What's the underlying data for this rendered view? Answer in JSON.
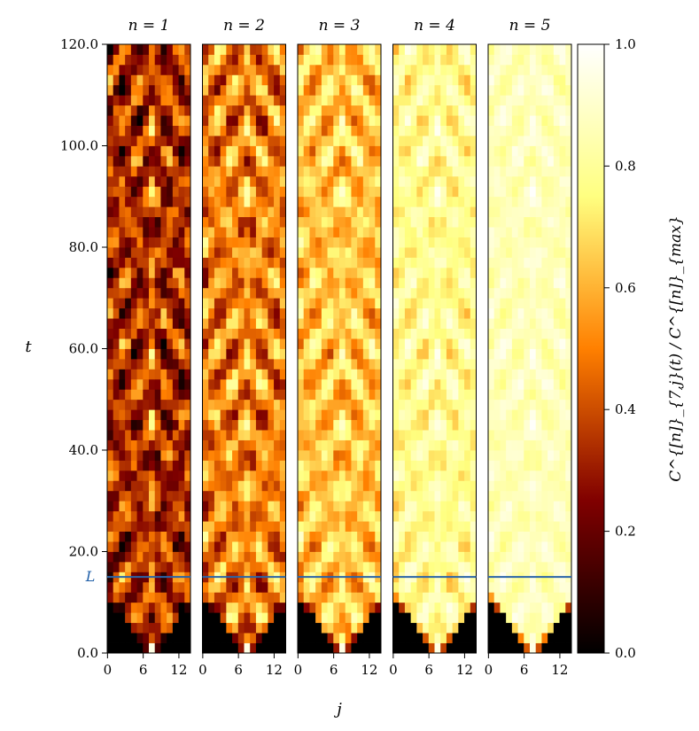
{
  "chart_data": {
    "type": "heatmap",
    "panels": [
      {
        "title": "n = 1",
        "n": 1,
        "base_level": 0.3
      },
      {
        "title": "n = 2",
        "n": 2,
        "base_level": 0.5
      },
      {
        "title": "n = 3",
        "n": 3,
        "base_level": 0.63
      },
      {
        "title": "n = 4",
        "n": 4,
        "base_level": 0.78
      },
      {
        "title": "n = 5",
        "n": 5,
        "base_level": 0.86
      }
    ],
    "xlabel": "j",
    "ylabel": "t",
    "colorbar_label": "C^{[n]}_{7,j}(t) / C^{[n]}_{max}",
    "colorbar_ticks": [
      "0.0",
      "0.2",
      "0.4",
      "0.6",
      "0.8",
      "1.0"
    ],
    "colorbar_range": [
      0,
      1
    ],
    "colormap": "afmhot",
    "x_ticks": [
      "0",
      "6",
      "12"
    ],
    "x_range": [
      0,
      13
    ],
    "y_ticks": [
      "0.0",
      "20.0",
      "40.0",
      "60.0",
      "80.0",
      "100.0",
      "120.0"
    ],
    "y_range": [
      0,
      120
    ],
    "reference_line": {
      "label": "L",
      "t": 15,
      "color": "#2a64a8"
    }
  }
}
